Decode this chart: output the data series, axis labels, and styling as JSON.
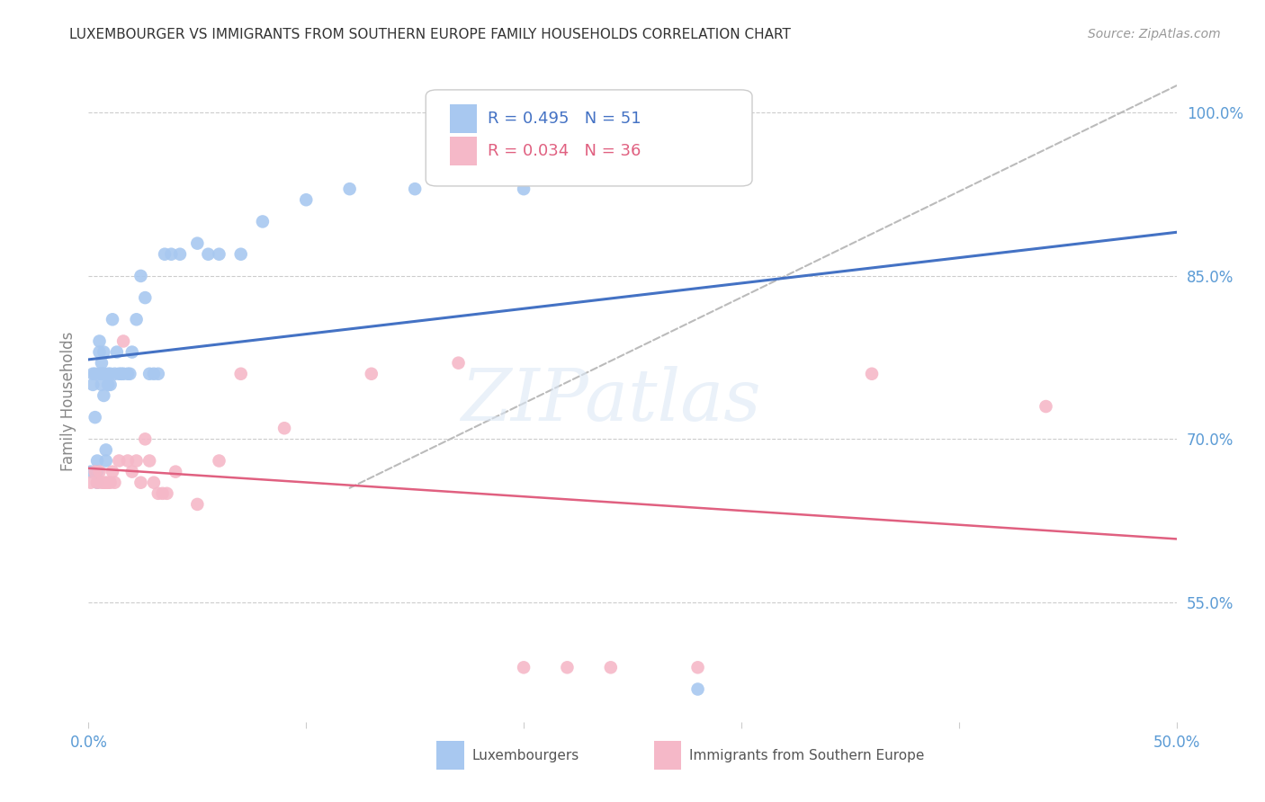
{
  "title": "LUXEMBOURGER VS IMMIGRANTS FROM SOUTHERN EUROPE FAMILY HOUSEHOLDS CORRELATION CHART",
  "source": "Source: ZipAtlas.com",
  "ylabel": "Family Households",
  "x_min": 0.0,
  "x_max": 0.5,
  "y_min": 0.44,
  "y_max": 1.03,
  "x_ticks": [
    0.0,
    0.1,
    0.2,
    0.3,
    0.4,
    0.5
  ],
  "x_tick_labels": [
    "0.0%",
    "",
    "",
    "",
    "",
    "50.0%"
  ],
  "y_ticks": [
    0.55,
    0.7,
    0.85,
    1.0
  ],
  "y_tick_labels": [
    "55.0%",
    "70.0%",
    "85.0%",
    "100.0%"
  ],
  "blue_color": "#A8C8F0",
  "pink_color": "#F5B8C8",
  "blue_line_color": "#4472C4",
  "pink_line_color": "#E06080",
  "dashed_line_color": "#BBBBBB",
  "legend_R_blue": "R = 0.495",
  "legend_N_blue": "N = 51",
  "legend_R_pink": "R = 0.034",
  "legend_N_pink": "N = 36",
  "legend_label_blue": "Luxembourgers",
  "legend_label_pink": "Immigrants from Southern Europe",
  "watermark": "ZIPatlas",
  "blue_scatter_x": [
    0.001,
    0.002,
    0.002,
    0.003,
    0.003,
    0.004,
    0.004,
    0.004,
    0.005,
    0.005,
    0.005,
    0.006,
    0.006,
    0.006,
    0.007,
    0.007,
    0.007,
    0.008,
    0.008,
    0.009,
    0.009,
    0.01,
    0.01,
    0.011,
    0.012,
    0.013,
    0.014,
    0.015,
    0.016,
    0.018,
    0.019,
    0.02,
    0.022,
    0.024,
    0.026,
    0.028,
    0.03,
    0.032,
    0.035,
    0.038,
    0.042,
    0.05,
    0.055,
    0.06,
    0.07,
    0.08,
    0.1,
    0.12,
    0.15,
    0.2,
    0.28
  ],
  "blue_scatter_y": [
    0.67,
    0.76,
    0.75,
    0.76,
    0.72,
    0.68,
    0.67,
    0.66,
    0.76,
    0.79,
    0.78,
    0.77,
    0.76,
    0.75,
    0.78,
    0.76,
    0.74,
    0.69,
    0.68,
    0.76,
    0.75,
    0.76,
    0.75,
    0.81,
    0.76,
    0.78,
    0.76,
    0.76,
    0.76,
    0.76,
    0.76,
    0.78,
    0.81,
    0.85,
    0.83,
    0.76,
    0.76,
    0.76,
    0.87,
    0.87,
    0.87,
    0.88,
    0.87,
    0.87,
    0.87,
    0.9,
    0.92,
    0.93,
    0.93,
    0.93,
    0.47
  ],
  "pink_scatter_x": [
    0.001,
    0.003,
    0.004,
    0.005,
    0.006,
    0.007,
    0.008,
    0.009,
    0.01,
    0.011,
    0.012,
    0.014,
    0.016,
    0.018,
    0.02,
    0.022,
    0.024,
    0.026,
    0.028,
    0.03,
    0.032,
    0.034,
    0.036,
    0.04,
    0.05,
    0.06,
    0.07,
    0.09,
    0.13,
    0.17,
    0.2,
    0.22,
    0.24,
    0.28,
    0.36,
    0.44
  ],
  "pink_scatter_y": [
    0.66,
    0.67,
    0.66,
    0.67,
    0.66,
    0.66,
    0.66,
    0.66,
    0.66,
    0.67,
    0.66,
    0.68,
    0.79,
    0.68,
    0.67,
    0.68,
    0.66,
    0.7,
    0.68,
    0.66,
    0.65,
    0.65,
    0.65,
    0.67,
    0.64,
    0.68,
    0.76,
    0.71,
    0.76,
    0.77,
    0.49,
    0.49,
    0.49,
    0.49,
    0.76,
    0.73
  ],
  "title_fontsize": 11,
  "source_fontsize": 10,
  "axis_label_color": "#5B9BD5",
  "tick_color": "#5B9BD5",
  "grid_color": "#CCCCCC"
}
